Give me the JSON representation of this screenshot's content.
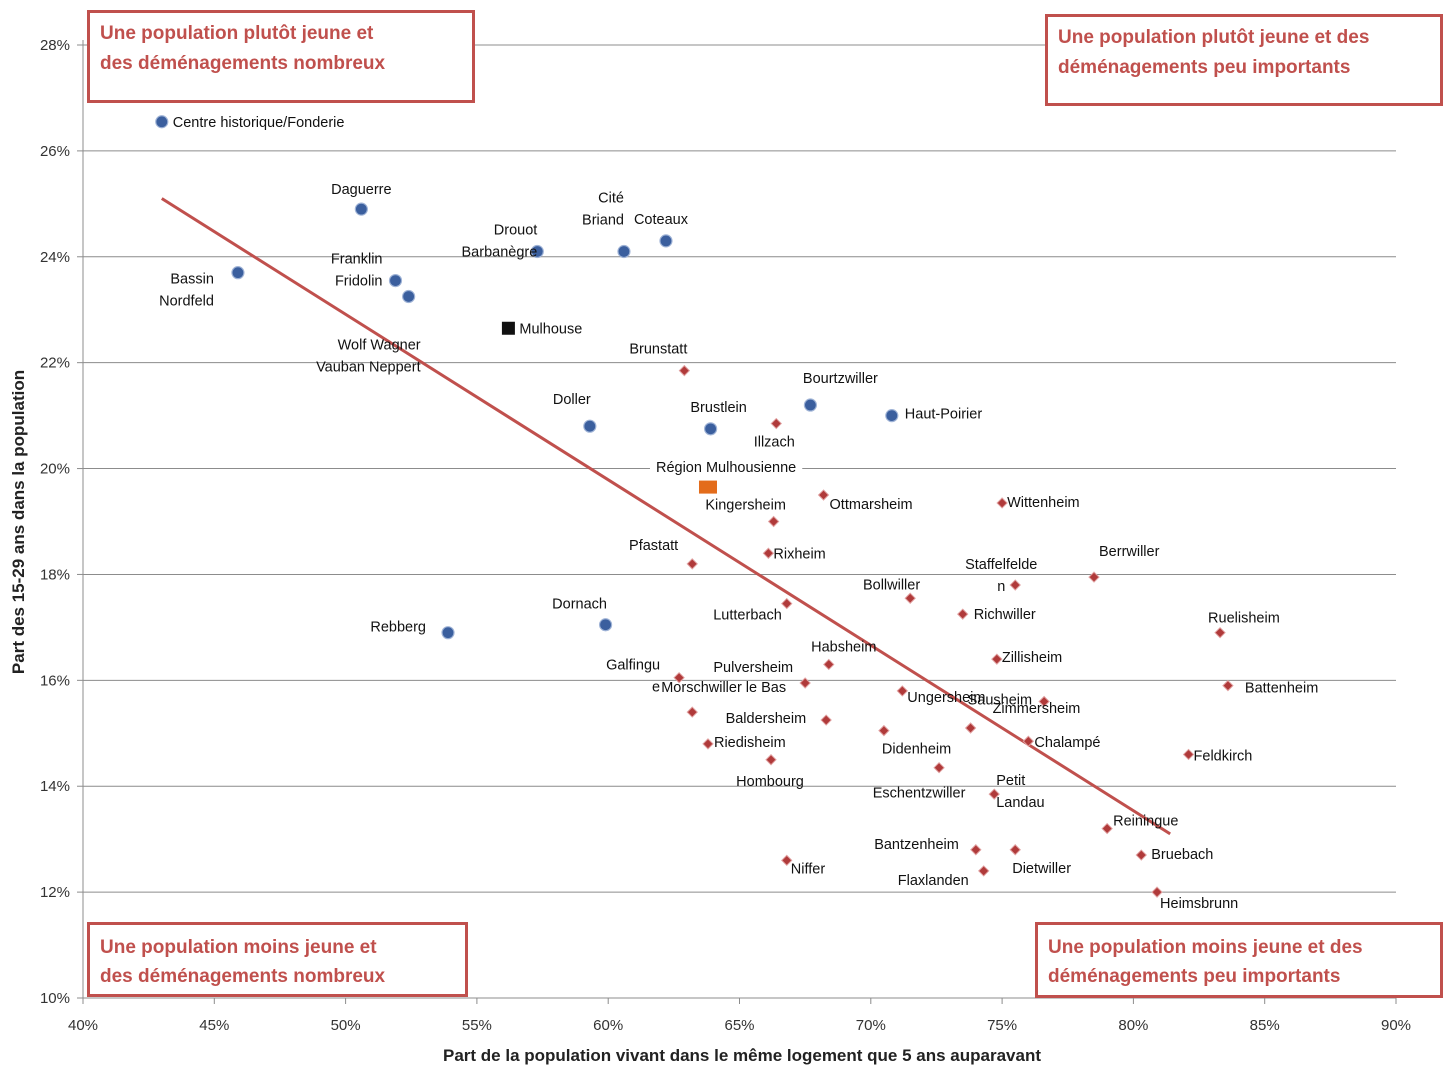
{
  "chart_data": {
    "type": "scatter",
    "xlabel": "Part de la population vivant dans le même logement que 5 ans auparavant",
    "ylabel": "Part des 15-29 ans dans la population",
    "xlim": [
      40,
      90
    ],
    "ylim": [
      10,
      28
    ],
    "xticks": [
      40,
      45,
      50,
      55,
      60,
      65,
      70,
      75,
      80,
      85,
      90
    ],
    "yticks": [
      10,
      12,
      14,
      16,
      18,
      20,
      22,
      24,
      26,
      28
    ],
    "tick_suffix": "%",
    "grid": "horizontal",
    "colors": {
      "mulhouse_quartiers": "#3b5f9e",
      "communes": "#b03a3a",
      "mulhouse": "#111111",
      "region": "#e36c1b",
      "trendline": "#c0504d"
    },
    "trendline": {
      "x": [
        43,
        81.4
      ],
      "y": [
        25.1,
        13.1
      ]
    },
    "quadrants": [
      {
        "lines": [
          "Une population  plutôt jeune et",
          "des déménagements nombreux"
        ]
      },
      {
        "lines": [
          "Une population  plutôt jeune et des",
          "déménagements peu importants"
        ]
      },
      {
        "lines": [
          "Une population  moins jeune et",
          "des déménagements nombreux"
        ]
      },
      {
        "lines": [
          "Une population  moins jeune et des",
          "déménagements peu importants"
        ]
      }
    ],
    "points": [
      {
        "x": 43.0,
        "y": 26.55,
        "marker": "circle",
        "label": [
          "Centre historique/Fonderie"
        ]
      },
      {
        "x": 50.6,
        "y": 24.9,
        "marker": "circle",
        "label": [
          "Daguerre"
        ]
      },
      {
        "x": 45.9,
        "y": 23.7,
        "marker": "circle",
        "label": [
          "Bassin",
          "Nordfeld"
        ]
      },
      {
        "x": 51.9,
        "y": 23.55,
        "marker": "circle",
        "label": [
          "Franklin",
          "Fridolin"
        ]
      },
      {
        "x": 52.4,
        "y": 23.25,
        "marker": "circle",
        "label": [
          "Wolf Wagner",
          "Vauban Neppert"
        ]
      },
      {
        "x": 57.3,
        "y": 24.1,
        "marker": "circle",
        "label": [
          "Drouot",
          "Barbanègre"
        ]
      },
      {
        "x": 60.6,
        "y": 24.1,
        "marker": "circle",
        "label": [
          "Cité",
          "Briand"
        ]
      },
      {
        "x": 62.2,
        "y": 24.3,
        "marker": "circle",
        "label": [
          "Coteaux"
        ]
      },
      {
        "x": 56.2,
        "y": 22.65,
        "marker": "square-black",
        "label": [
          "Mulhouse"
        ]
      },
      {
        "x": 59.3,
        "y": 20.8,
        "marker": "circle",
        "label": [
          "Doller"
        ]
      },
      {
        "x": 63.9,
        "y": 20.75,
        "marker": "circle",
        "label": [
          "Brustlein"
        ]
      },
      {
        "x": 67.7,
        "y": 21.2,
        "marker": "circle",
        "label": [
          "Bourtzwiller"
        ]
      },
      {
        "x": 70.8,
        "y": 21.0,
        "marker": "circle",
        "label": [
          "Haut-Poirier"
        ]
      },
      {
        "x": 59.9,
        "y": 17.05,
        "marker": "circle",
        "label": [
          "Dornach"
        ]
      },
      {
        "x": 53.9,
        "y": 16.9,
        "marker": "circle",
        "label": [
          "Rebberg"
        ]
      },
      {
        "x": 63.8,
        "y": 19.65,
        "marker": "square-orange",
        "label": [
          "Région Mulhousienne"
        ]
      },
      {
        "x": 62.9,
        "y": 21.85,
        "marker": "diamond",
        "label": [
          "Brunstatt"
        ]
      },
      {
        "x": 66.4,
        "y": 20.85,
        "marker": "diamond",
        "label": [
          "Illzach"
        ]
      },
      {
        "x": 68.2,
        "y": 19.5,
        "marker": "diamond",
        "label": [
          "Ottmarsheim"
        ]
      },
      {
        "x": 66.3,
        "y": 19.0,
        "marker": "diamond",
        "label": [
          "Kingersheim"
        ]
      },
      {
        "x": 75.0,
        "y": 19.35,
        "marker": "diamond",
        "label": [
          "Wittenheim"
        ]
      },
      {
        "x": 63.2,
        "y": 18.2,
        "marker": "diamond",
        "label": [
          "Pfastatt"
        ]
      },
      {
        "x": 66.1,
        "y": 18.4,
        "marker": "diamond",
        "label": [
          "Rixheim"
        ]
      },
      {
        "x": 75.5,
        "y": 17.8,
        "marker": "diamond",
        "label": [
          "Staffelfelde",
          "n"
        ]
      },
      {
        "x": 78.5,
        "y": 17.95,
        "marker": "diamond",
        "label": [
          "Berrwiller"
        ]
      },
      {
        "x": 71.5,
        "y": 17.55,
        "marker": "diamond",
        "label": [
          "Bollwiller"
        ]
      },
      {
        "x": 66.8,
        "y": 17.45,
        "marker": "diamond",
        "label": [
          "Lutterbach"
        ]
      },
      {
        "x": 73.5,
        "y": 17.25,
        "marker": "diamond",
        "label": [
          "Richwiller"
        ]
      },
      {
        "x": 83.3,
        "y": 16.9,
        "marker": "diamond",
        "label": [
          "Ruelisheim"
        ]
      },
      {
        "x": 68.4,
        "y": 16.3,
        "marker": "diamond",
        "label": [
          "Habsheim"
        ]
      },
      {
        "x": 74.8,
        "y": 16.4,
        "marker": "diamond",
        "label": [
          "Zillisheim"
        ]
      },
      {
        "x": 62.7,
        "y": 16.05,
        "marker": "diamond",
        "label": [
          "Galfingu",
          "e"
        ]
      },
      {
        "x": 67.5,
        "y": 15.95,
        "marker": "diamond",
        "label": [
          "Pulversheim"
        ]
      },
      {
        "x": 71.2,
        "y": 15.8,
        "marker": "diamond",
        "label": [
          "Ungersheim"
        ]
      },
      {
        "x": 83.6,
        "y": 15.9,
        "marker": "diamond",
        "label": [
          "Battenheim"
        ]
      },
      {
        "x": 76.6,
        "y": 15.6,
        "marker": "diamond",
        "label": [
          "Sausheim"
        ]
      },
      {
        "x": 63.2,
        "y": 15.4,
        "marker": "diamond",
        "label": [
          "Morschwiller le Bas"
        ]
      },
      {
        "x": 68.3,
        "y": 15.25,
        "marker": "diamond",
        "label": [
          "Baldersheim"
        ]
      },
      {
        "x": 73.8,
        "y": 15.1,
        "marker": "diamond",
        "label": [
          "Zimmersheim"
        ]
      },
      {
        "x": 70.5,
        "y": 15.05,
        "marker": "diamond",
        "label": [
          "Didenheim"
        ]
      },
      {
        "x": 63.8,
        "y": 14.8,
        "marker": "diamond",
        "label": [
          "Riedisheim"
        ]
      },
      {
        "x": 76.0,
        "y": 14.85,
        "marker": "diamond",
        "label": [
          "Chalampé"
        ]
      },
      {
        "x": 82.1,
        "y": 14.6,
        "marker": "diamond",
        "label": [
          "Feldkirch"
        ]
      },
      {
        "x": 66.2,
        "y": 14.5,
        "marker": "diamond",
        "label": [
          "Hombourg"
        ]
      },
      {
        "x": 72.6,
        "y": 14.35,
        "marker": "diamond",
        "label": [
          "Eschentzwiller"
        ]
      },
      {
        "x": 74.7,
        "y": 13.85,
        "marker": "diamond",
        "label": [
          "Petit",
          "Landau"
        ]
      },
      {
        "x": 79.0,
        "y": 13.2,
        "marker": "diamond",
        "label": [
          "Reiningue"
        ]
      },
      {
        "x": 74.0,
        "y": 12.8,
        "marker": "diamond",
        "label": [
          "Bantzenheim"
        ]
      },
      {
        "x": 75.5,
        "y": 12.8,
        "marker": "diamond",
        "label": [
          "Dietwiller"
        ]
      },
      {
        "x": 80.3,
        "y": 12.7,
        "marker": "diamond",
        "label": [
          "Bruebach"
        ]
      },
      {
        "x": 66.8,
        "y": 12.6,
        "marker": "diamond",
        "label": [
          "Niffer"
        ]
      },
      {
        "x": 74.3,
        "y": 12.4,
        "marker": "diamond",
        "label": [
          "Flaxlanden"
        ]
      },
      {
        "x": 80.9,
        "y": 12.0,
        "marker": "diamond",
        "label": [
          "Heimsbrunn"
        ]
      }
    ]
  }
}
